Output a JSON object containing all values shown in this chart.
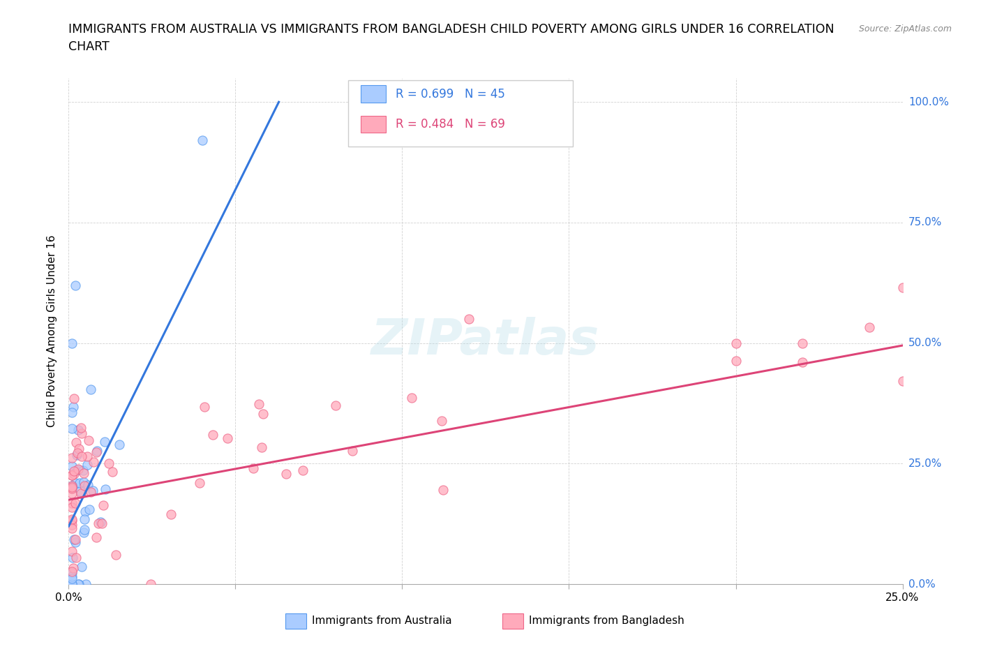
{
  "title_line1": "IMMIGRANTS FROM AUSTRALIA VS IMMIGRANTS FROM BANGLADESH CHILD POVERTY AMONG GIRLS UNDER 16 CORRELATION",
  "title_line2": "CHART",
  "source": "Source: ZipAtlas.com",
  "ylabel": "Child Poverty Among Girls Under 16",
  "xlim": [
    0.0,
    0.25
  ],
  "ylim": [
    0.0,
    1.05
  ],
  "ytick_vals": [
    0.0,
    0.25,
    0.5,
    0.75,
    1.0
  ],
  "xtick_vals": [
    0.0,
    0.05,
    0.1,
    0.15,
    0.2,
    0.25
  ],
  "color_australia": "#aaccff",
  "color_australia_edge": "#5599ee",
  "color_australia_line": "#3377dd",
  "color_bangladesh": "#ffaabb",
  "color_bangladesh_edge": "#ee6688",
  "color_bangladesh_line": "#dd4477",
  "R_australia": 0.699,
  "N_australia": 45,
  "R_bangladesh": 0.484,
  "N_bangladesh": 69,
  "legend_label_australia": "Immigrants from Australia",
  "legend_label_bangladesh": "Immigrants from Bangladesh",
  "aus_line_x0": 0.0,
  "aus_line_y0": 0.12,
  "aus_line_x1": 0.063,
  "aus_line_y1": 1.0,
  "ban_line_x0": 0.0,
  "ban_line_y0": 0.175,
  "ban_line_x1": 0.25,
  "ban_line_y1": 0.495
}
